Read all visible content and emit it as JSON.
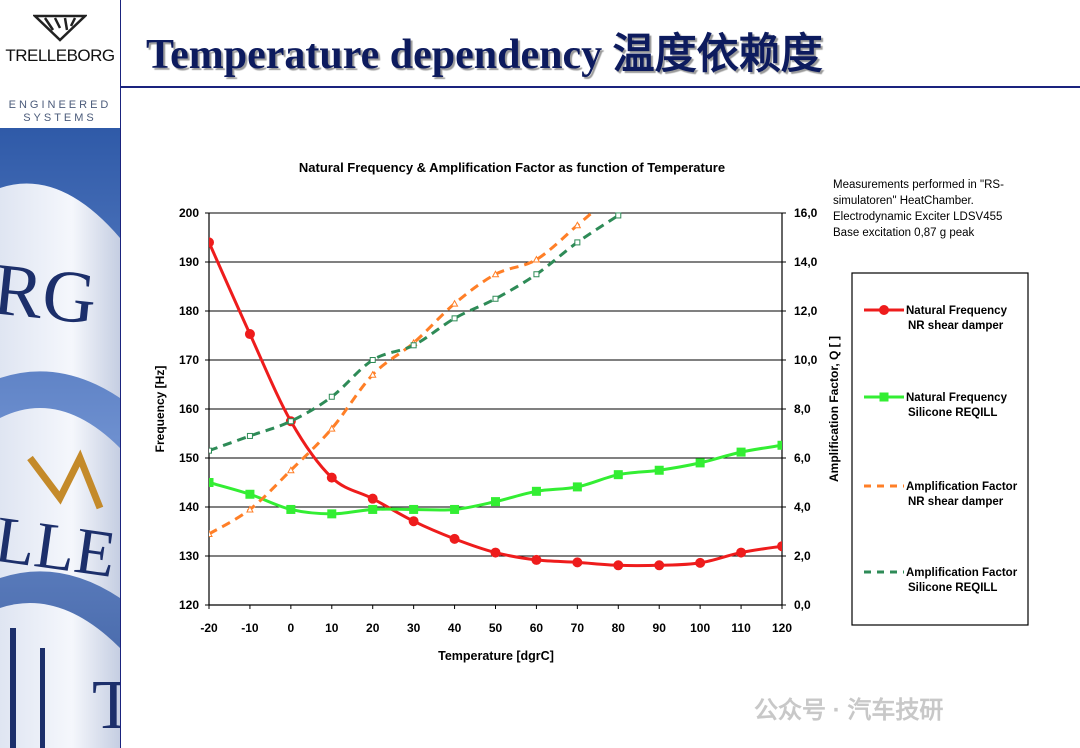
{
  "brand": {
    "name": "TRELLEBORG",
    "tagline_line1": "ENGINEERED",
    "tagline_line2": "SYSTEMS"
  },
  "slide": {
    "title": "Temperature dependency  温度依赖度"
  },
  "note": {
    "lines": [
      "Measurements performed in \"RS-",
      "simulatoren\" HeatChamber.",
      "Electrodynamic Exciter LDSV455",
      "Base excitation 0,87 g peak"
    ]
  },
  "watermark": "公众号 · 汽车技研",
  "colors": {
    "red": "#ee1c1c",
    "green": "#33ee33",
    "orange": "#ff7f27",
    "darkgreen": "#2e8b57",
    "navy": "#1a237e"
  },
  "chart_data": {
    "type": "line",
    "title": "Natural Frequency & Amplification Factor as function of Temperature",
    "xlabel": "Temperature [dgrC]",
    "ylabel": "Frequency [Hz]",
    "y2label": "Amplification Factor, Q [ ]",
    "x": [
      -20,
      -10,
      0,
      10,
      20,
      30,
      40,
      50,
      60,
      70,
      80,
      90,
      100,
      110,
      120
    ],
    "xticks": [
      "-20",
      "-10",
      "0",
      "10",
      "20",
      "30",
      "40",
      "50",
      "60",
      "70",
      "80",
      "90",
      "100",
      "110",
      "120"
    ],
    "ylim": [
      120,
      200
    ],
    "yticks": [
      "120",
      "130",
      "140",
      "150",
      "160",
      "170",
      "180",
      "190",
      "200"
    ],
    "y2lim": [
      0,
      16
    ],
    "y2ticks": [
      "0,0",
      "2,0",
      "4,0",
      "6,0",
      "8,0",
      "10,0",
      "12,0",
      "14,0",
      "16,0"
    ],
    "grid": true,
    "legend_position": "right",
    "series": [
      {
        "name": "Natural Frequency\nNR shear damper",
        "axis": "left",
        "style": "solid",
        "marker": "circle",
        "color": "#ee1c1c",
        "x": [
          -20,
          -10,
          0,
          10,
          20,
          30,
          40,
          50,
          60,
          70,
          80,
          90,
          100,
          110,
          120
        ],
        "y": [
          194,
          175.3,
          157.5,
          146,
          141.7,
          137.1,
          133.5,
          130.7,
          129.2,
          128.7,
          128.1,
          128.1,
          128.6,
          130.7,
          132
        ]
      },
      {
        "name": "Natural Frequency\nSilicone REQILL",
        "axis": "left",
        "style": "solid",
        "marker": "square",
        "color": "#33ee33",
        "x": [
          -20,
          -10,
          0,
          10,
          20,
          30,
          40,
          50,
          60,
          70,
          80,
          90,
          100,
          110,
          120
        ],
        "y": [
          145,
          142.6,
          139.5,
          138.6,
          139.5,
          139.5,
          139.5,
          141.1,
          143.2,
          144.1,
          146.6,
          147.5,
          149,
          151.2,
          152.6
        ]
      },
      {
        "name": "Amplification Factor\nNR shear damper",
        "axis": "right",
        "style": "dashed",
        "marker": "triangle",
        "color": "#ff7f27",
        "x": [
          -20,
          -10,
          0,
          10,
          20,
          30,
          40,
          50,
          60,
          70,
          73.5
        ],
        "y": [
          2.9,
          3.9,
          5.5,
          7.2,
          9.4,
          10.7,
          12.3,
          13.5,
          14.1,
          15.5,
          16.0
        ]
      },
      {
        "name": "Amplification Factor\nSilicone REQILL",
        "axis": "right",
        "style": "dashed",
        "marker": "square-open",
        "color": "#2e8b57",
        "x": [
          -20,
          -10,
          0,
          10,
          20,
          30,
          40,
          50,
          60,
          70,
          80
        ],
        "y": [
          6.3,
          6.9,
          7.5,
          8.5,
          10.0,
          10.6,
          11.7,
          12.5,
          13.5,
          14.8,
          15.9
        ]
      }
    ]
  }
}
